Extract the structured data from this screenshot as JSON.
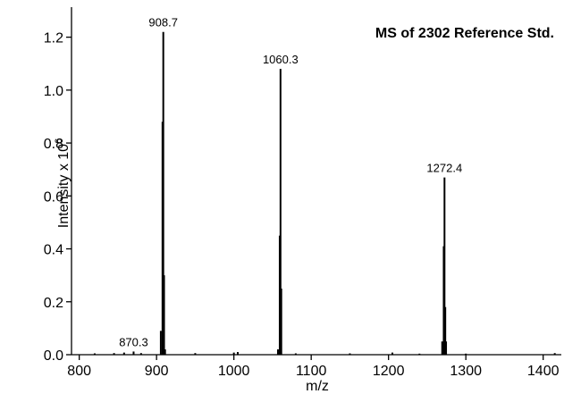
{
  "chart_data": {
    "type": "spectrum",
    "title": "MS of 2302 Reference Std.",
    "x_label": "m/z",
    "y_label": "Intensity x 10",
    "y_label_exponent": "6",
    "x": [
      820,
      845,
      858,
      870.3,
      880,
      905.5,
      907.7,
      908.7,
      909.7,
      911,
      950,
      1000,
      1005,
      1057,
      1059.3,
      1060.3,
      1061.3,
      1080,
      1150,
      1205,
      1240,
      1269.4,
      1271.4,
      1272.4,
      1273.4,
      1274.4,
      1300,
      1415
    ],
    "values": [
      0.005,
      0.006,
      0.008,
      0.012,
      0.006,
      0.09,
      0.88,
      1.22,
      0.3,
      0.02,
      0.006,
      0.008,
      0.01,
      0.02,
      0.45,
      1.08,
      0.25,
      0.005,
      0.005,
      0.008,
      0.004,
      0.05,
      0.41,
      0.67,
      0.18,
      0.05,
      0.004,
      0.006
    ],
    "color": "#000000",
    "peak_labels": [
      908.7,
      1060.3,
      1272.4,
      870.3
    ],
    "xlim": [
      790,
      1420
    ],
    "xticks": [
      800,
      900,
      1000,
      1100,
      1200,
      1300,
      1400
    ],
    "ylim": [
      0,
      1.3
    ],
    "yticks": [
      {
        "value": 0,
        "label": "0.0"
      },
      0.2,
      0.4,
      0.6,
      0.8,
      {
        "value": 1,
        "label": "1.0"
      },
      1.2
    ]
  }
}
